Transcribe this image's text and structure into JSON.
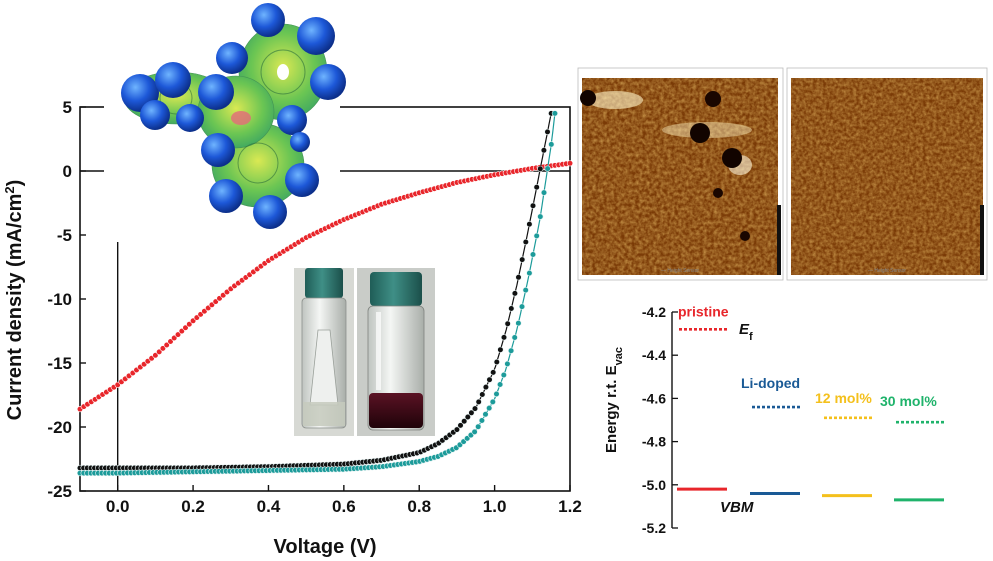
{
  "chart_data": [
    {
      "type": "line",
      "title": "",
      "xlabel": "Voltage (V)",
      "ylabel_main": "Current density (mA/cm",
      "ylabel_sup": "2",
      "ylabel_close": ")",
      "xlim": [
        -0.1,
        1.2
      ],
      "ylim": [
        -25,
        5
      ],
      "xticks": [
        "0.0",
        "0.2",
        "0.4",
        "0.6",
        "0.8",
        "1.0",
        "1.2"
      ],
      "xtick_values": [
        0.0,
        0.2,
        0.4,
        0.6,
        0.8,
        1.0,
        1.2
      ],
      "yticks": [
        "5",
        "0",
        "-5",
        "-10",
        "-15",
        "-20",
        "-25"
      ],
      "ytick_values": [
        5,
        0,
        -5,
        -10,
        -15,
        -20,
        -25
      ],
      "series": [
        {
          "color": "#e8262b",
          "x": [
            -0.1,
            0.0,
            0.1,
            0.2,
            0.3,
            0.4,
            0.5,
            0.6,
            0.7,
            0.8,
            0.9,
            1.0,
            1.1,
            1.2
          ],
          "y": [
            -18.6,
            -16.7,
            -14.4,
            -11.7,
            -9.2,
            -7.0,
            -5.2,
            -3.8,
            -2.6,
            -1.7,
            -0.9,
            -0.3,
            0.2,
            0.6
          ]
        },
        {
          "color": "#111111",
          "x": [
            -0.1,
            0.0,
            0.2,
            0.4,
            0.6,
            0.7,
            0.8,
            0.85,
            0.9,
            0.95,
            1.0,
            1.03,
            1.06,
            1.09,
            1.12,
            1.15
          ],
          "y": [
            -23.2,
            -23.2,
            -23.2,
            -23.1,
            -22.9,
            -22.6,
            -22.0,
            -21.3,
            -20.2,
            -18.5,
            -15.5,
            -12.5,
            -8.8,
            -4.5,
            0.0,
            4.5
          ]
        },
        {
          "color": "#1c9b9a",
          "x": [
            -0.1,
            0.0,
            0.2,
            0.4,
            0.6,
            0.7,
            0.8,
            0.85,
            0.9,
            0.95,
            1.0,
            1.03,
            1.06,
            1.09,
            1.12,
            1.15,
            1.16
          ],
          "y": [
            -23.6,
            -23.6,
            -23.5,
            -23.4,
            -23.3,
            -23.1,
            -22.7,
            -22.3,
            -21.6,
            -20.3,
            -17.8,
            -15.5,
            -12.3,
            -8.3,
            -3.8,
            2.0,
            4.5
          ]
        }
      ]
    },
    {
      "type": "scatter",
      "title": "",
      "ylabel_main": "Energy r.t. E",
      "ylabel_sub": "vac",
      "ylim": [
        -5.2,
        -4.2
      ],
      "yticks": [
        "-4.2",
        "-4.4",
        "-4.6",
        "-4.8",
        "-5.0",
        "-5.2"
      ],
      "ytick_values": [
        -4.2,
        -4.4,
        -4.6,
        -4.8,
        -5.0,
        -5.2
      ],
      "ef_label_main": "E",
      "ef_label_sub": "f",
      "vbm_label": "VBM",
      "samples": [
        {
          "label": "pristine",
          "color": "#e8262b",
          "ef": -4.28,
          "vbm": -5.02
        },
        {
          "label": "Li-doped",
          "color": "#1a5a96",
          "ef": -4.64,
          "vbm": -5.04
        },
        {
          "label": "12 mol%",
          "color": "#f4c01c",
          "ef": -4.69,
          "vbm": -5.05
        },
        {
          "label": "30 mol%",
          "color": "#1fb36b",
          "ef": -4.71,
          "vbm": -5.07
        }
      ]
    }
  ]
}
